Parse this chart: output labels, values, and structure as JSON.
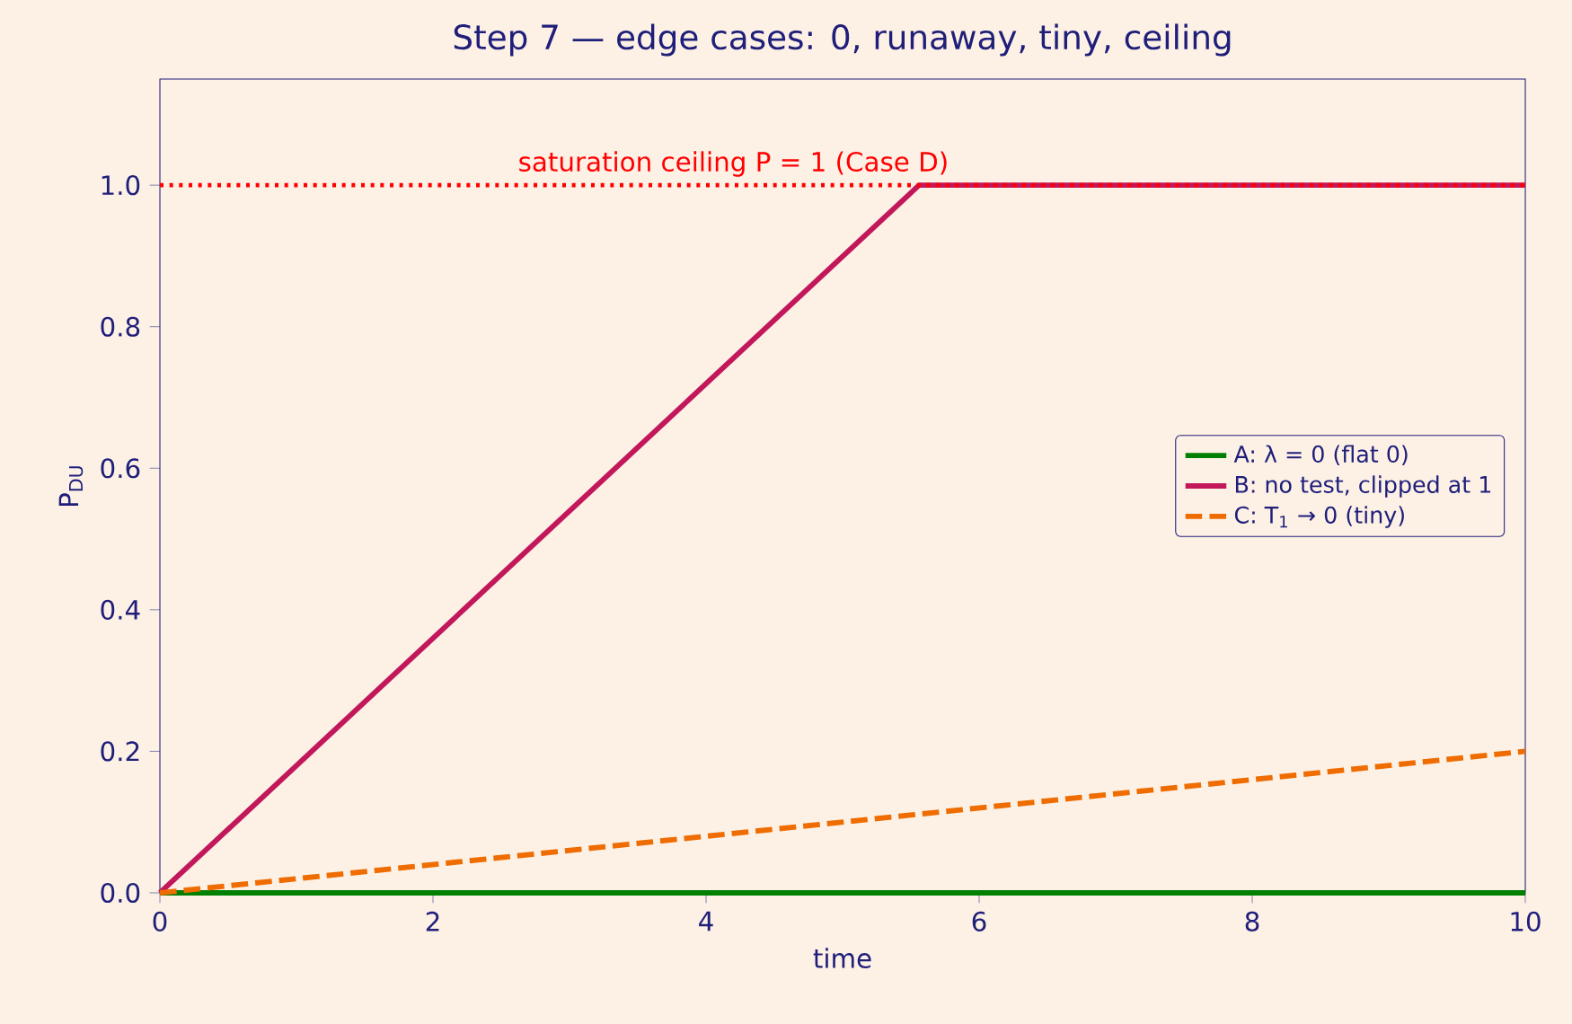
{
  "chart_data": {
    "type": "line",
    "title": "Step 7 — edge cases: 0, runaway, tiny, ceiling",
    "xlabel": "time",
    "ylabel": "P$_{DU}$",
    "series": [
      {
        "name": "A: λ = 0 (flat 0)",
        "color": "#008000",
        "line_style": "solid",
        "x": [
          0,
          10
        ],
        "values": [
          0,
          0
        ]
      },
      {
        "name": "B: no test, clipped at 1",
        "color": "#c2185b",
        "line_style": "solid",
        "x": [
          0,
          5.56,
          10
        ],
        "values": [
          0,
          1,
          1
        ]
      },
      {
        "name": "C: T$_{1}$ → 0 (tiny)",
        "color": "#ef6c00",
        "line_style": "dashed",
        "x": [
          0,
          10
        ],
        "values": [
          0,
          0.2
        ]
      }
    ],
    "xlim": [
      0,
      10
    ],
    "ylim": [
      0,
      1.15
    ],
    "xticks": [
      0,
      2,
      4,
      6,
      8,
      10
    ],
    "yticks": [
      {
        "value": 0,
        "label": "0.0"
      },
      {
        "value": 0.2,
        "label": "0.2"
      },
      {
        "value": 0.4,
        "label": "0.4"
      },
      {
        "value": 0.6,
        "label": "0.6"
      },
      {
        "value": 0.8,
        "label": "0.8"
      },
      {
        "value": 1,
        "label": "1.0"
      }
    ],
    "ref_lines": [
      {
        "axis": "y",
        "value": 1,
        "label": "saturation ceiling  P = 1 (Case D)",
        "color": "#ff0000",
        "line_style": "dotted"
      }
    ],
    "grid": false,
    "legend": "right",
    "marker": "none"
  }
}
